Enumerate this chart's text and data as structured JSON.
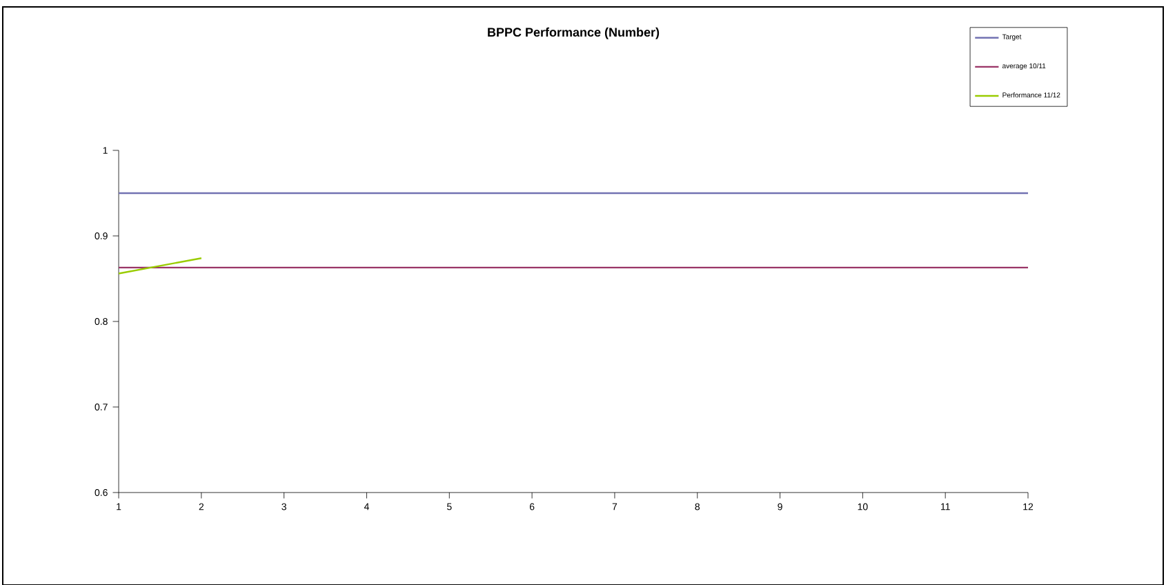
{
  "chart_data": {
    "type": "line",
    "title": "**BPPC Performance (Number)**",
    "x": [
      1,
      2,
      3,
      4,
      5,
      6,
      7,
      8,
      9,
      10,
      11,
      12
    ],
    "series": [
      {
        "name": "Target",
        "color": "#7272b2",
        "values": [
          0.95,
          0.95,
          0.95,
          0.95,
          0.95,
          0.95,
          0.95,
          0.95,
          0.95,
          0.95,
          0.95,
          0.95
        ]
      },
      {
        "name": "average 10/11",
        "color": "#993366",
        "values": [
          0.863,
          0.863,
          0.863,
          0.863,
          0.863,
          0.863,
          0.863,
          0.863,
          0.863,
          0.863,
          0.863,
          0.863
        ]
      },
      {
        "name": "Performance 11/12",
        "color": "#99cc00",
        "values": [
          0.856,
          0.874,
          null,
          null,
          null,
          null,
          null,
          null,
          null,
          null,
          null,
          null
        ]
      }
    ],
    "xlim": [
      1,
      12
    ],
    "xticks": [
      1,
      2,
      3,
      4,
      5,
      6,
      7,
      8,
      9,
      10,
      11,
      12
    ],
    "ylim": [
      0.6,
      1
    ],
    "yticks": [
      0.6,
      0.7,
      0.8,
      0.9,
      1
    ],
    "legend": "top right"
  }
}
